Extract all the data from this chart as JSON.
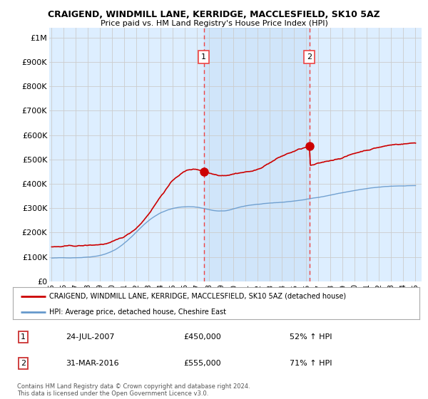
{
  "title": "CRAIGEND, WINDMILL LANE, KERRIDGE, MACCLESFIELD, SK10 5AZ",
  "subtitle": "Price paid vs. HM Land Registry's House Price Index (HPI)",
  "ylabel_ticks": [
    "£0",
    "£100K",
    "£200K",
    "£300K",
    "£400K",
    "£500K",
    "£600K",
    "£700K",
    "£800K",
    "£900K",
    "£1M"
  ],
  "ytick_values": [
    0,
    100000,
    200000,
    300000,
    400000,
    500000,
    600000,
    700000,
    800000,
    900000,
    1000000
  ],
  "ylim": [
    0,
    1040000
  ],
  "xlim_start": 1994.8,
  "xlim_end": 2025.5,
  "background_color": "#ffffff",
  "plot_bg_color": "#ddeeff",
  "grid_color": "#cccccc",
  "red_line_color": "#cc0000",
  "blue_line_color": "#6699cc",
  "marker1_x": 2007.55,
  "marker1_y": 450000,
  "marker2_x": 2016.25,
  "marker2_y": 555000,
  "vline_color": "#ee4444",
  "legend_label_red": "CRAIGEND, WINDMILL LANE, KERRIDGE, MACCLESFIELD, SK10 5AZ (detached house)",
  "legend_label_blue": "HPI: Average price, detached house, Cheshire East",
  "annotation1_num": "1",
  "annotation1_date": "24-JUL-2007",
  "annotation1_price": "£450,000",
  "annotation1_hpi": "52% ↑ HPI",
  "annotation2_num": "2",
  "annotation2_date": "31-MAR-2016",
  "annotation2_price": "£555,000",
  "annotation2_hpi": "71% ↑ HPI",
  "footer": "Contains HM Land Registry data © Crown copyright and database right 2024.\nThis data is licensed under the Open Government Licence v3.0."
}
